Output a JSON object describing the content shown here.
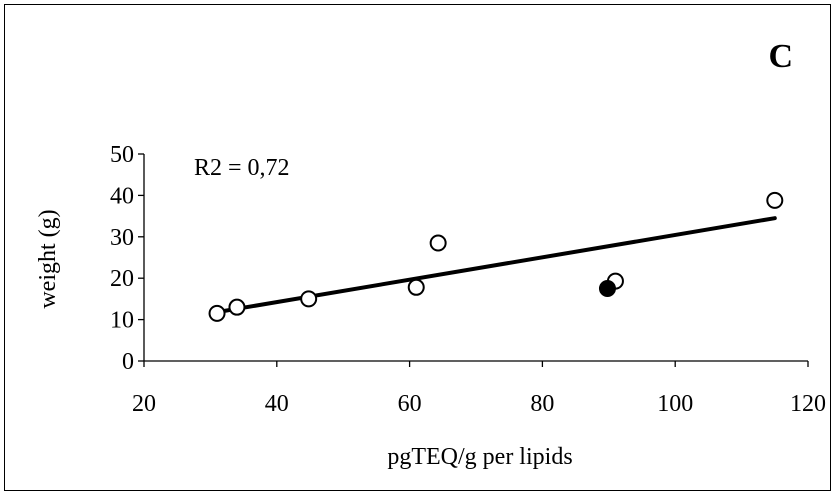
{
  "chart_data": {
    "type": "scatter",
    "panel_label": "C",
    "annotation": "R2 = 0,72",
    "xlabel": "pgTEQ/g per lipids",
    "ylabel": "weight (g)",
    "xlim": [
      20,
      120
    ],
    "ylim": [
      0,
      50
    ],
    "xticks": [
      20,
      40,
      60,
      80,
      100,
      120
    ],
    "yticks": [
      0,
      10,
      20,
      30,
      40,
      50
    ],
    "grid": false,
    "series": [
      {
        "marker": "open-circle",
        "points": [
          {
            "x": 31,
            "y": 11.5
          },
          {
            "x": 34,
            "y": 13
          },
          {
            "x": 44.8,
            "y": 15
          },
          {
            "x": 61,
            "y": 17.8
          },
          {
            "x": 64.3,
            "y": 28.5
          },
          {
            "x": 91,
            "y": 19.3
          },
          {
            "x": 115,
            "y": 38.8
          }
        ]
      },
      {
        "marker": "filled-circle",
        "points": [
          {
            "x": 89.8,
            "y": 17.5
          }
        ]
      }
    ],
    "trendline": {
      "x": [
        31,
        115
      ],
      "y": [
        11.8,
        34.5
      ]
    },
    "colors": {
      "ink": "#000000",
      "background": "#ffffff"
    }
  }
}
